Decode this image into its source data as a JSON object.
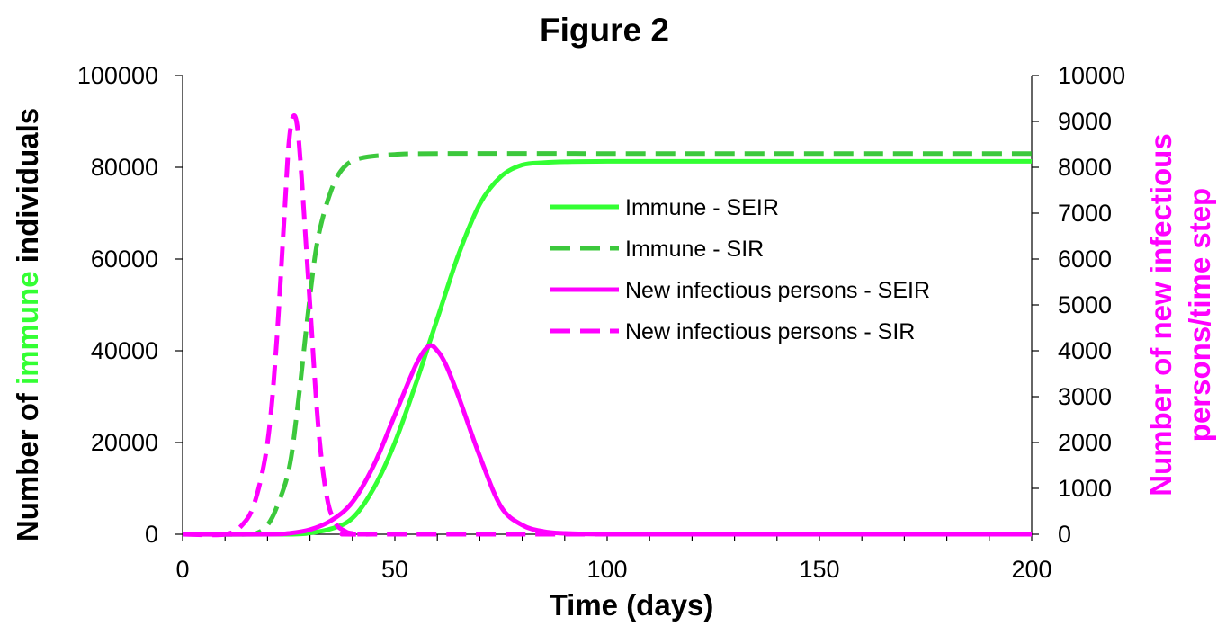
{
  "chart_data": {
    "type": "line",
    "title": "Figure 2",
    "xlabel": "Time (days)",
    "ylabel": {
      "prefix": "Number of ",
      "highlight": "immune",
      "suffix": " individuals",
      "highlight_color": "#33ff33"
    },
    "y2label": {
      "line1": "Number of new infectious",
      "line2": "persons/time step",
      "color": "#ff00ff"
    },
    "xlim": [
      0,
      200
    ],
    "ylim": [
      0,
      100000
    ],
    "y2lim": [
      0,
      10000
    ],
    "xticks": [
      "0",
      "50",
      "100",
      "150",
      "200"
    ],
    "yticks": [
      "0",
      "20000",
      "40000",
      "60000",
      "80000",
      "100000"
    ],
    "y2ticks": [
      "0",
      "1000",
      "2000",
      "3000",
      "4000",
      "5000",
      "6000",
      "7000",
      "8000",
      "9000",
      "10000"
    ],
    "grid": false,
    "legend_position": "upper-center-right",
    "series": [
      {
        "name": "Immune - SEIR",
        "axis": "left",
        "color": "#33ff33",
        "dash": "solid",
        "x": [
          0,
          25,
          30,
          35,
          40,
          45,
          50,
          55,
          60,
          65,
          70,
          75,
          80,
          85,
          90,
          100,
          120,
          150,
          200
        ],
        "y": [
          0,
          0,
          300,
          1200,
          3500,
          10000,
          20000,
          33000,
          47000,
          61000,
          72000,
          78000,
          80500,
          81000,
          81200,
          81300,
          81300,
          81300,
          81300
        ]
      },
      {
        "name": "Immune - SIR",
        "axis": "left",
        "color": "#3cc83c",
        "dash": "dashed",
        "x": [
          0,
          15,
          18,
          20,
          22,
          25,
          27,
          30,
          32,
          35,
          38,
          42,
          50,
          60,
          100,
          150,
          200
        ],
        "y": [
          0,
          0,
          500,
          2000,
          5500,
          14000,
          27000,
          52000,
          65000,
          75000,
          80000,
          82000,
          82800,
          83000,
          83000,
          83000,
          83000
        ]
      },
      {
        "name": "New infectious persons - SEIR",
        "axis": "right",
        "color": "#ff00ff",
        "dash": "solid",
        "x": [
          0,
          20,
          25,
          30,
          35,
          40,
          45,
          50,
          55,
          58,
          60,
          62,
          65,
          70,
          75,
          80,
          85,
          90,
          100,
          120,
          150,
          200
        ],
        "y": [
          0,
          0,
          20,
          100,
          300,
          700,
          1500,
          2600,
          3700,
          4100,
          4000,
          3700,
          3000,
          1700,
          600,
          200,
          60,
          20,
          0,
          0,
          0,
          0
        ]
      },
      {
        "name": "New infectious persons - SIR",
        "axis": "right",
        "color": "#ff00ff",
        "dash": "dashed",
        "x": [
          0,
          10,
          14,
          17,
          20,
          22,
          24,
          25,
          26,
          27,
          28,
          30,
          32,
          34,
          36,
          38,
          40,
          45,
          50,
          200
        ],
        "y": [
          0,
          0,
          200,
          700,
          2000,
          4000,
          7000,
          8500,
          9100,
          8900,
          7800,
          5000,
          2300,
          800,
          250,
          80,
          20,
          0,
          0,
          0
        ]
      }
    ]
  }
}
